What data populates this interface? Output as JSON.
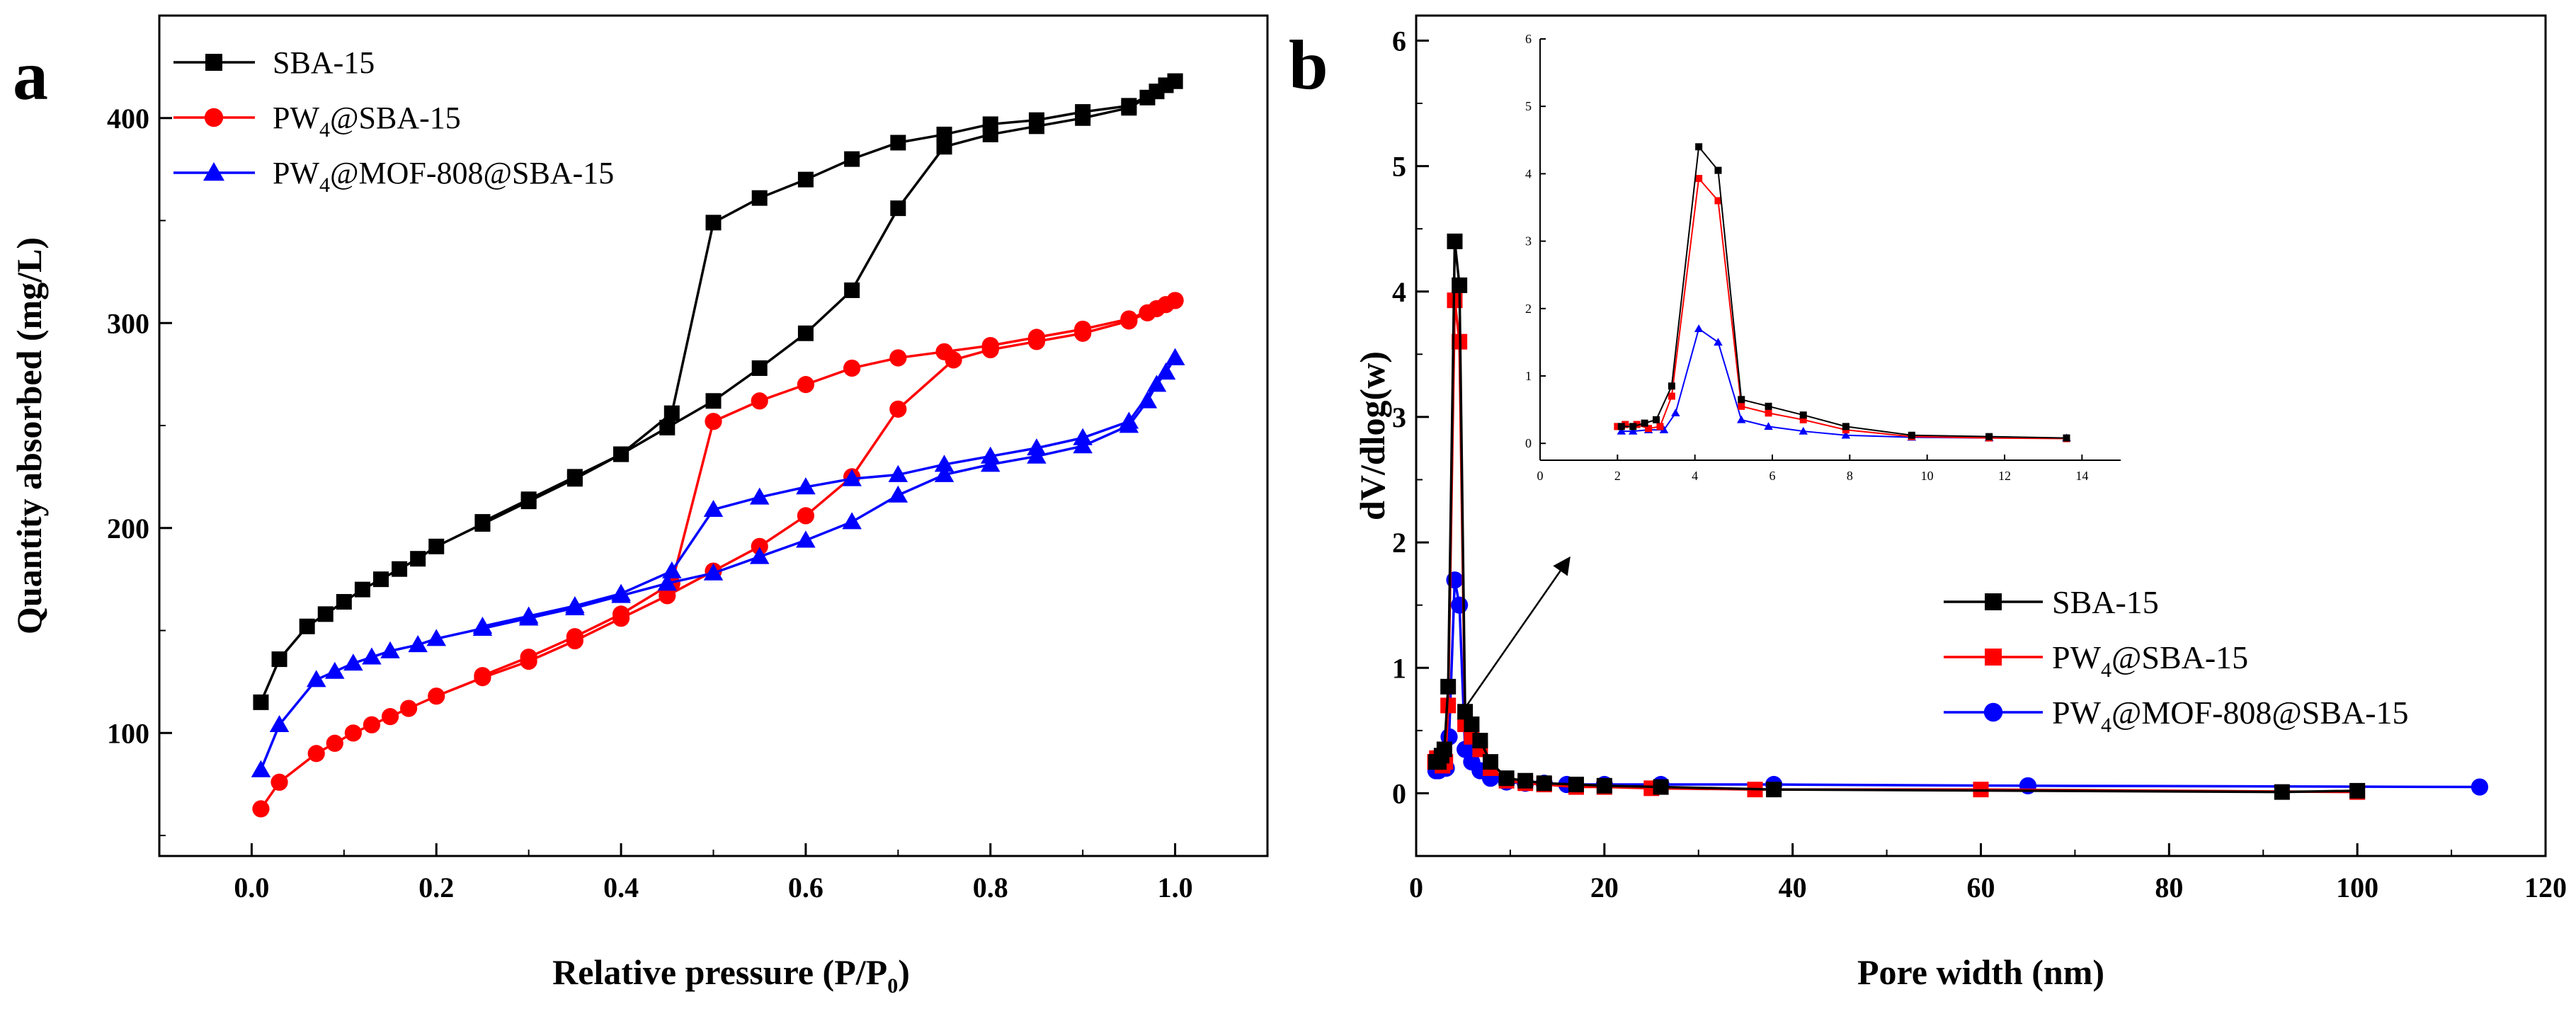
{
  "chart_data": [
    {
      "panel": "a",
      "type": "line",
      "xlabel": "Relative pressure (P/P0)",
      "xlabel_main": "Relative pressure (P/P",
      "xlabel_sub": "0",
      "xlabel_close": ")",
      "ylabel": "Quantity absorbed (mg/L)",
      "xlim": [
        -0.1,
        1.1
      ],
      "ylim": [
        40,
        450
      ],
      "xticks": [
        0.0,
        0.2,
        0.4,
        0.6,
        0.8,
        1.0
      ],
      "xtick_labels": [
        "0.0",
        "0.2",
        "0.4",
        "0.6",
        "0.8",
        "1.0"
      ],
      "yticks": [
        100,
        200,
        300,
        400
      ],
      "ytick_labels": [
        "100",
        "200",
        "300",
        "400"
      ],
      "legend_position": "top-left",
      "series": [
        {
          "name": "SBA-15",
          "name_main": "SBA-15",
          "name_sub": "",
          "name_rest": "",
          "color": "#000000",
          "marker": "square",
          "adsorption": [
            [
              0.01,
              115
            ],
            [
              0.03,
              136
            ],
            [
              0.06,
              152
            ],
            [
              0.08,
              158
            ],
            [
              0.1,
              164
            ],
            [
              0.12,
              170
            ],
            [
              0.14,
              175
            ],
            [
              0.16,
              180
            ],
            [
              0.18,
              185
            ],
            [
              0.2,
              191
            ],
            [
              0.25,
              202
            ],
            [
              0.3,
              213
            ],
            [
              0.35,
              224
            ],
            [
              0.4,
              236
            ],
            [
              0.45,
              249
            ],
            [
              0.5,
              262
            ],
            [
              0.55,
              278
            ],
            [
              0.6,
              295
            ],
            [
              0.65,
              316
            ],
            [
              0.7,
              356
            ],
            [
              0.75,
              386
            ],
            [
              0.8,
              392
            ],
            [
              0.85,
              396
            ],
            [
              0.9,
              400
            ],
            [
              0.95,
              405
            ],
            [
              0.97,
              410
            ],
            [
              0.98,
              413
            ],
            [
              0.99,
              416
            ],
            [
              1.0,
              418
            ]
          ],
          "desorption": [
            [
              1.0,
              418
            ],
            [
              0.95,
              406
            ],
            [
              0.9,
              403
            ],
            [
              0.85,
              399
            ],
            [
              0.8,
              397
            ],
            [
              0.75,
              392
            ],
            [
              0.7,
              388
            ],
            [
              0.65,
              380
            ],
            [
              0.6,
              370
            ],
            [
              0.55,
              361
            ],
            [
              0.5,
              349
            ],
            [
              0.455,
              256
            ],
            [
              0.4,
              236
            ],
            [
              0.35,
              225
            ],
            [
              0.3,
              214
            ],
            [
              0.25,
              203
            ]
          ]
        },
        {
          "name": "PW4@SBA-15",
          "name_main": "PW",
          "name_sub": "4",
          "name_rest": "@SBA-15",
          "color": "#ff0000",
          "marker": "circle",
          "adsorption": [
            [
              0.01,
              63
            ],
            [
              0.03,
              76
            ],
            [
              0.07,
              90
            ],
            [
              0.09,
              95
            ],
            [
              0.11,
              100
            ],
            [
              0.13,
              104
            ],
            [
              0.15,
              108
            ],
            [
              0.17,
              112
            ],
            [
              0.2,
              118
            ],
            [
              0.25,
              127
            ],
            [
              0.3,
              135
            ],
            [
              0.35,
              145
            ],
            [
              0.4,
              156
            ],
            [
              0.45,
              167
            ],
            [
              0.5,
              179
            ],
            [
              0.55,
              191
            ],
            [
              0.6,
              206
            ],
            [
              0.65,
              225
            ],
            [
              0.7,
              258
            ],
            [
              0.76,
              282
            ],
            [
              0.8,
              287
            ],
            [
              0.85,
              291
            ],
            [
              0.9,
              295
            ],
            [
              0.95,
              301
            ],
            [
              0.97,
              305
            ],
            [
              0.98,
              307
            ],
            [
              0.99,
              309
            ],
            [
              1.0,
              311
            ]
          ],
          "desorption": [
            [
              1.0,
              311
            ],
            [
              0.95,
              302
            ],
            [
              0.9,
              297
            ],
            [
              0.85,
              293
            ],
            [
              0.8,
              289
            ],
            [
              0.75,
              286
            ],
            [
              0.7,
              283
            ],
            [
              0.65,
              278
            ],
            [
              0.6,
              270
            ],
            [
              0.55,
              262
            ],
            [
              0.5,
              252
            ],
            [
              0.455,
              173
            ],
            [
              0.4,
              158
            ],
            [
              0.35,
              147
            ],
            [
              0.3,
              137
            ],
            [
              0.25,
              128
            ]
          ]
        },
        {
          "name": "PW4@MOF-808@SBA-15",
          "name_main": "PW",
          "name_sub": "4",
          "name_rest": "@MOF-808@SBA-15",
          "color": "#0000ff",
          "marker": "triangle",
          "adsorption": [
            [
              0.01,
              82
            ],
            [
              0.03,
              104
            ],
            [
              0.07,
              126
            ],
            [
              0.09,
              130
            ],
            [
              0.11,
              134
            ],
            [
              0.13,
              137
            ],
            [
              0.15,
              140
            ],
            [
              0.18,
              143
            ],
            [
              0.2,
              146
            ],
            [
              0.25,
              151
            ],
            [
              0.3,
              156
            ],
            [
              0.35,
              161
            ],
            [
              0.4,
              167
            ],
            [
              0.45,
              173
            ],
            [
              0.5,
              178
            ],
            [
              0.55,
              186
            ],
            [
              0.6,
              194
            ],
            [
              0.65,
              203
            ],
            [
              0.7,
              216
            ],
            [
              0.75,
              226
            ],
            [
              0.8,
              231
            ],
            [
              0.85,
              235
            ],
            [
              0.9,
              240
            ],
            [
              0.95,
              250
            ],
            [
              0.97,
              262
            ],
            [
              0.98,
              270
            ],
            [
              0.99,
              276
            ],
            [
              1.0,
              283
            ]
          ],
          "desorption": [
            [
              1.0,
              283
            ],
            [
              0.95,
              252
            ],
            [
              0.9,
              244
            ],
            [
              0.85,
              239
            ],
            [
              0.8,
              235
            ],
            [
              0.75,
              231
            ],
            [
              0.7,
              226
            ],
            [
              0.65,
              224
            ],
            [
              0.6,
              220
            ],
            [
              0.55,
              215
            ],
            [
              0.5,
              209
            ],
            [
              0.455,
              179
            ],
            [
              0.4,
              168
            ],
            [
              0.35,
              162
            ],
            [
              0.3,
              157
            ],
            [
              0.25,
              152
            ]
          ]
        }
      ]
    },
    {
      "panel": "b",
      "type": "line",
      "xlabel": "Pore width (nm)",
      "ylabel": "dV/dlog(w)",
      "xlim": [
        0,
        120
      ],
      "ylim": [
        -0.5,
        6.2
      ],
      "xticks": [
        0,
        20,
        40,
        60,
        80,
        100,
        120
      ],
      "xtick_labels": [
        "0",
        "20",
        "40",
        "60",
        "80",
        "100",
        "120"
      ],
      "yticks": [
        0,
        1,
        2,
        3,
        4,
        5,
        6
      ],
      "ytick_labels": [
        "0",
        "1",
        "2",
        "3",
        "4",
        "5",
        "6"
      ],
      "legend_position": "center-right",
      "annotation": "arrow pointing from the main peak to the zoomed inset",
      "series": [
        {
          "name": "SBA-15",
          "name_main": "SBA-15",
          "name_sub": "",
          "name_rest": "",
          "color": "#000000",
          "marker": "square",
          "points": [
            [
              2.1,
              0.25
            ],
            [
              2.4,
              0.25
            ],
            [
              2.7,
              0.3
            ],
            [
              3.0,
              0.35
            ],
            [
              3.4,
              0.85
            ],
            [
              4.1,
              4.4
            ],
            [
              4.6,
              4.05
            ],
            [
              5.2,
              0.65
            ],
            [
              5.9,
              0.55
            ],
            [
              6.8,
              0.42
            ],
            [
              7.9,
              0.25
            ],
            [
              9.6,
              0.12
            ],
            [
              11.6,
              0.1
            ],
            [
              13.6,
              0.08
            ],
            [
              17,
              0.07
            ],
            [
              20,
              0.06
            ],
            [
              26,
              0.05
            ],
            [
              38,
              0.03
            ],
            [
              92,
              0.01
            ],
            [
              100,
              0.02
            ]
          ]
        },
        {
          "name": "PW4@SBA-15",
          "name_main": "PW",
          "name_sub": "4",
          "name_rest": "@SBA-15",
          "color": "#ff0000",
          "marker": "square",
          "points": [
            [
              2.0,
              0.25
            ],
            [
              2.2,
              0.28
            ],
            [
              2.5,
              0.28
            ],
            [
              2.8,
              0.22
            ],
            [
              3.1,
              0.25
            ],
            [
              3.4,
              0.7
            ],
            [
              4.1,
              3.93
            ],
            [
              4.6,
              3.6
            ],
            [
              5.2,
              0.55
            ],
            [
              5.9,
              0.45
            ],
            [
              6.8,
              0.35
            ],
            [
              7.9,
              0.2
            ],
            [
              9.6,
              0.1
            ],
            [
              11.6,
              0.08
            ],
            [
              13.6,
              0.07
            ],
            [
              17,
              0.05
            ],
            [
              20,
              0.05
            ],
            [
              25,
              0.04
            ],
            [
              36,
              0.03
            ],
            [
              60,
              0.03
            ],
            [
              100,
              0.01
            ]
          ]
        },
        {
          "name": "PW4@MOF-808@SBA-15",
          "name_main": "PW",
          "name_sub": "4",
          "name_rest": "@MOF-808@SBA-15",
          "color": "#0000ff",
          "marker": "circle",
          "points": [
            [
              2.1,
              0.18
            ],
            [
              2.4,
              0.18
            ],
            [
              2.8,
              0.2
            ],
            [
              3.2,
              0.2
            ],
            [
              3.5,
              0.45
            ],
            [
              4.1,
              1.7
            ],
            [
              4.6,
              1.5
            ],
            [
              5.2,
              0.35
            ],
            [
              5.9,
              0.25
            ],
            [
              6.8,
              0.18
            ],
            [
              7.9,
              0.12
            ],
            [
              9.6,
              0.09
            ],
            [
              11.6,
              0.08
            ],
            [
              13.6,
              0.08
            ],
            [
              16,
              0.07
            ],
            [
              20,
              0.07
            ],
            [
              26,
              0.07
            ],
            [
              38,
              0.07
            ],
            [
              65,
              0.06
            ],
            [
              113,
              0.05
            ]
          ]
        }
      ],
      "inset": {
        "xlim": [
          0,
          15
        ],
        "ylim": [
          -0.25,
          6
        ],
        "xticks": [
          0,
          2,
          4,
          6,
          8,
          10,
          12,
          14
        ],
        "xtick_labels": [
          "0",
          "2",
          "4",
          "6",
          "8",
          "10",
          "12",
          "14"
        ],
        "yticks": [
          0,
          1,
          2,
          3,
          4,
          5,
          6
        ],
        "ytick_labels": [
          "0",
          "1",
          "2",
          "3",
          "4",
          "5",
          "6"
        ]
      }
    }
  ],
  "panels": {
    "a_label": "a",
    "b_label": "b"
  }
}
